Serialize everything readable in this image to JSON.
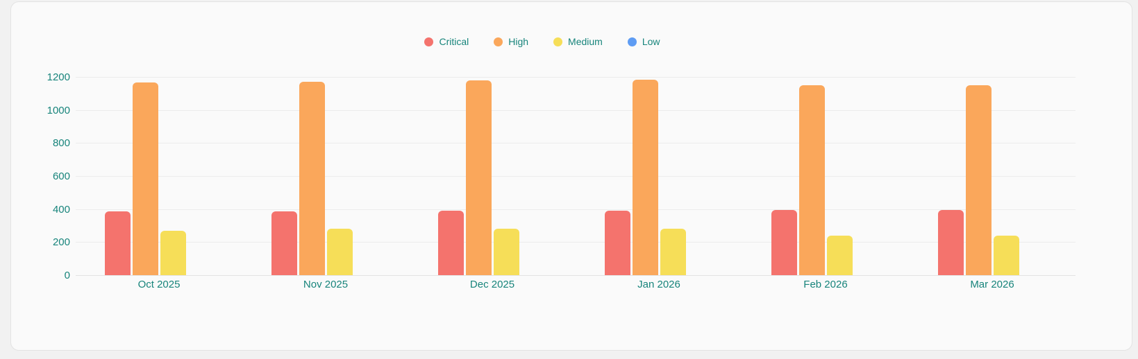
{
  "page": {
    "background_color": "#f1f1f1"
  },
  "card": {
    "background_color": "#fafafa",
    "border_color": "#e3e3e3"
  },
  "chart_data": {
    "type": "bar",
    "title": "",
    "categories": [
      "Oct 2025",
      "Nov 2025",
      "Dec 2025",
      "Jan 2026",
      "Feb 2026",
      "Mar 2026"
    ],
    "series": [
      {
        "name": "Critical",
        "color": "#f4736d",
        "values": [
          385,
          388,
          390,
          390,
          395,
          395
        ]
      },
      {
        "name": "High",
        "color": "#faa75b",
        "values": [
          1165,
          1172,
          1178,
          1183,
          1148,
          1148
        ]
      },
      {
        "name": "Medium",
        "color": "#f6de58",
        "values": [
          270,
          280,
          280,
          280,
          238,
          238
        ]
      },
      {
        "name": "Low",
        "color": "#5e9cf3",
        "values": [
          0,
          0,
          0,
          0,
          0,
          0
        ]
      }
    ],
    "yticks": [
      0,
      200,
      400,
      600,
      800,
      1000,
      1200
    ],
    "ylim": [
      0,
      1200
    ],
    "legend_position": "top",
    "grid": true,
    "axis_text_color": "#17847b",
    "grid_color": "#ececec"
  }
}
